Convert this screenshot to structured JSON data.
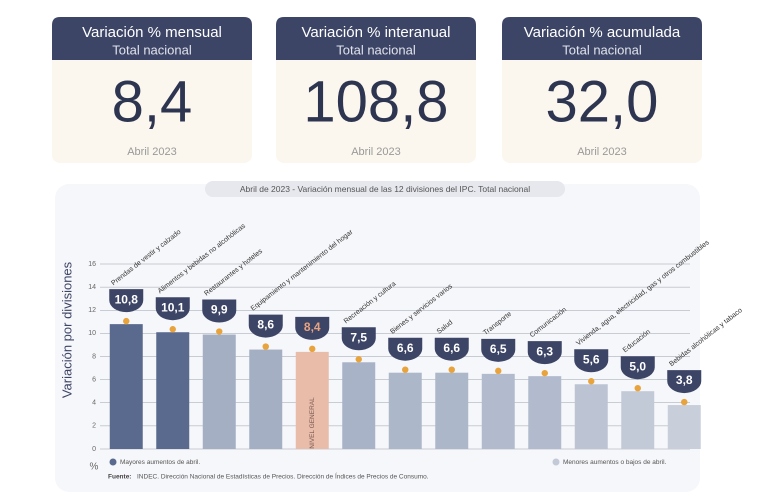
{
  "cards": [
    {
      "title": "Variación % mensual",
      "subtitle": "Total nacional",
      "value": "8,4",
      "date": "Abril 2023"
    },
    {
      "title": "Variación % interanual",
      "subtitle": "Total nacional",
      "value": "108,8",
      "date": "Abril 2023"
    },
    {
      "title": "Variación % acumulada",
      "subtitle": "Total nacional",
      "value": "32,0",
      "date": "Abril 2023"
    }
  ],
  "chart_data": {
    "type": "bar",
    "title": "Abril de 2023 - Variación mensual de las 12 divisiones del IPC. Total nacional",
    "ylabel": "Variación por divisiones",
    "yunit": "%",
    "categories": [
      "Prendas de vestir y calzado",
      "Alimentos y bebidas no alcohólicas",
      "Restaurantes y hoteles",
      "Equipamiento y mantenimiento del hogar",
      "NIVEL GENERAL",
      "Recreación y cultura",
      "Bienes y servicios varios",
      "Salud",
      "Transporte",
      "Comunicación",
      "Vivienda, agua, electricidad, gas y otros combustibles",
      "Educación",
      "Bebidas alcohólicas y tabaco"
    ],
    "values": [
      10.8,
      10.1,
      9.9,
      8.6,
      8.4,
      7.5,
      6.6,
      6.6,
      6.5,
      6.3,
      5.6,
      5.0,
      3.8
    ],
    "value_labels": [
      "10,8",
      "10,1",
      "9,9",
      "8,6",
      "8,4",
      "7,5",
      "6,6",
      "6,6",
      "6,5",
      "6,3",
      "5,6",
      "5,0",
      "3,8"
    ],
    "colors": [
      "#5a6a8e",
      "#5a6a8e",
      "#a4afc4",
      "#a4afc4",
      "#e9bcaa",
      "#a9b3c7",
      "#adb7ca",
      "#adb7ca",
      "#b2bbcd",
      "#b2bbcd",
      "#bcc4d3",
      "#c3cad7",
      "#c8cfdb"
    ],
    "ylim": [
      0,
      16
    ],
    "yticks": [
      0,
      2,
      4,
      6,
      8,
      10,
      12,
      14,
      16
    ],
    "grid": true,
    "legend": [
      {
        "name": "Mayores aumentos de abril.",
        "color": "#5a6a8e"
      },
      {
        "name": "Menores aumentos o bajos de abril.",
        "color": "#c3cad7"
      }
    ],
    "source_label": "Fuente:",
    "source": "INDEC. Dirección Nacional de Estadísticas de Precios. Dirección de Índices de Precios de Consumo."
  }
}
